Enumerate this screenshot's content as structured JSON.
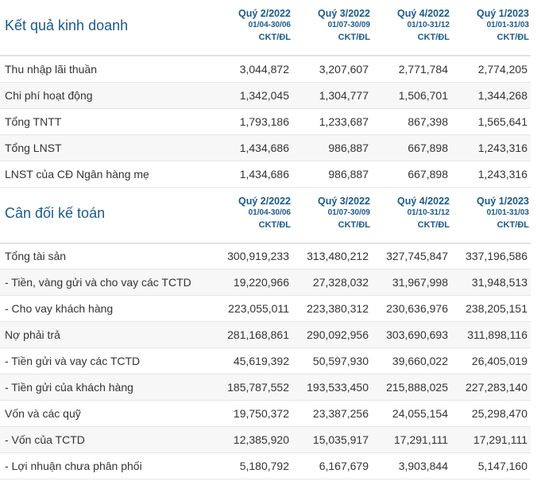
{
  "periods": [
    {
      "quarter": "Quý 2/2022",
      "range": "01/04-30/06",
      "unit": "CKT/ĐL"
    },
    {
      "quarter": "Quý 3/2022",
      "range": "01/07-30/09",
      "unit": "CKT/ĐL"
    },
    {
      "quarter": "Quý 4/2022",
      "range": "01/10-31/12",
      "unit": "CKT/ĐL"
    },
    {
      "quarter": "Quý 1/2023",
      "range": "01/01-31/03",
      "unit": "CKT/ĐL"
    }
  ],
  "sections": [
    {
      "title": "Kết quả kinh doanh",
      "rows": [
        {
          "label": "Thu nhập lãi thuần",
          "values": [
            "3,044,872",
            "3,207,607",
            "2,771,784",
            "2,774,205"
          ]
        },
        {
          "label": "Chi phí hoạt động",
          "values": [
            "1,342,045",
            "1,304,777",
            "1,506,701",
            "1,344,268"
          ]
        },
        {
          "label": "Tổng TNTT",
          "values": [
            "1,793,186",
            "1,233,687",
            "867,398",
            "1,565,641"
          ]
        },
        {
          "label": "Tổng LNST",
          "values": [
            "1,434,686",
            "986,887",
            "667,898",
            "1,243,316"
          ]
        },
        {
          "label": "LNST của CĐ Ngân hàng mẹ",
          "values": [
            "1,434,686",
            "986,887",
            "667,898",
            "1,243,316"
          ]
        }
      ]
    },
    {
      "title": "Cân đối kế toán",
      "rows": [
        {
          "label": "Tổng tài sản",
          "values": [
            "300,919,233",
            "313,480,212",
            "327,745,847",
            "337,196,586"
          ]
        },
        {
          "label": "- Tiền, vàng gửi và cho vay các TCTD",
          "values": [
            "19,220,966",
            "27,328,032",
            "31,967,998",
            "31,948,513"
          ]
        },
        {
          "label": "- Cho vay khách hàng",
          "values": [
            "223,055,011",
            "223,380,312",
            "230,636,976",
            "238,205,151"
          ]
        },
        {
          "label": "Nợ phải trả",
          "values": [
            "281,168,861",
            "290,092,956",
            "303,690,693",
            "311,898,116"
          ]
        },
        {
          "label": "- Tiền gửi và vay các TCTD",
          "values": [
            "45,619,392",
            "50,597,930",
            "39,660,022",
            "26,405,019"
          ]
        },
        {
          "label": "- Tiền gửi của khách hàng",
          "values": [
            "185,787,552",
            "193,533,450",
            "215,888,025",
            "227,283,140"
          ]
        },
        {
          "label": "Vốn và các quỹ",
          "values": [
            "19,750,372",
            "23,387,256",
            "24,055,154",
            "25,298,470"
          ]
        },
        {
          "label": "- Vốn của TCTD",
          "values": [
            "12,385,920",
            "15,035,917",
            "17,291,111",
            "17,291,111"
          ]
        },
        {
          "label": "- Lợi nhuận chưa phân phối",
          "values": [
            "5,180,792",
            "6,167,679",
            "3,903,844",
            "5,147,160"
          ]
        }
      ]
    }
  ]
}
